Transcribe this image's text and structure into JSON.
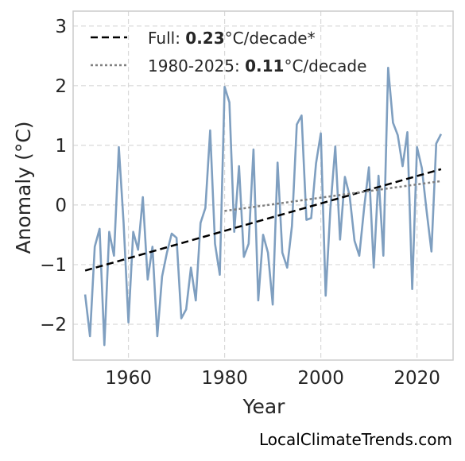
{
  "chart_data": {
    "type": "line",
    "xlabel": "Year",
    "ylabel": "Anomaly (°C)",
    "xlim": [
      1948.5,
      2027.5
    ],
    "ylim": [
      -2.6,
      3.25
    ],
    "x_ticks": [
      1960,
      1980,
      2000,
      2020
    ],
    "y_ticks": [
      -2,
      -1,
      0,
      1,
      2,
      3
    ],
    "x_tick_labels": [
      "1960",
      "1980",
      "2000",
      "2020"
    ],
    "y_tick_labels": [
      "−2",
      "−1",
      "0",
      "1",
      "2",
      "3"
    ],
    "grid": true,
    "legend_position": "top-left",
    "colors": {
      "series": "#7f9fc0",
      "full_trend": "#000000",
      "recent_trend": "#808080",
      "grid": "#d9d9d9",
      "frame": "#cccccc"
    },
    "series": [
      {
        "x": [
          1951,
          1952,
          1953,
          1954,
          1955,
          1956,
          1957,
          1958,
          1959,
          1960,
          1961,
          1962,
          1963,
          1964,
          1965,
          1966,
          1967,
          1968,
          1969,
          1970,
          1971,
          1972,
          1973,
          1974,
          1975,
          1976,
          1977,
          1978,
          1979,
          1980,
          1981,
          1982,
          1983,
          1984,
          1985,
          1986,
          1987,
          1988,
          1989,
          1990,
          1991,
          1992,
          1993,
          1994,
          1995,
          1996,
          1997,
          1998,
          1999,
          2000,
          2001,
          2002,
          2003,
          2004,
          2005,
          2006,
          2007,
          2008,
          2009,
          2010,
          2011,
          2012,
          2013,
          2014,
          2015,
          2016,
          2017,
          2018,
          2019,
          2020,
          2021,
          2022,
          2023,
          2024,
          2025
        ],
        "values": [
          -1.5,
          -2.2,
          -0.7,
          -0.4,
          -2.35,
          -0.45,
          -0.85,
          0.97,
          -0.3,
          -1.97,
          -0.45,
          -0.75,
          0.13,
          -1.25,
          -0.7,
          -2.2,
          -1.2,
          -0.8,
          -0.48,
          -0.55,
          -1.9,
          -1.75,
          -1.05,
          -1.6,
          -0.3,
          -0.05,
          1.25,
          -0.65,
          -1.17,
          1.98,
          1.72,
          -0.45,
          0.65,
          -0.87,
          -0.65,
          0.93,
          -1.6,
          -0.5,
          -0.8,
          -1.67,
          0.71,
          -0.8,
          -1.05,
          -0.35,
          1.35,
          1.5,
          -0.25,
          -0.22,
          0.7,
          1.2,
          -1.52,
          -0.05,
          0.98,
          -0.58,
          0.47,
          0.15,
          -0.6,
          -0.85,
          -0.05,
          0.63,
          -1.05,
          0.49,
          -0.85,
          2.3,
          1.38,
          1.17,
          0.65,
          1.22,
          -1.41,
          0.97,
          0.62,
          -0.1,
          -0.78,
          1.03,
          1.19
        ]
      }
    ],
    "trend_lines": [
      {
        "start": [
          1951,
          -1.1
        ],
        "end": [
          2025,
          0.6
        ]
      },
      {
        "start": [
          1980,
          -0.1
        ],
        "end": [
          2025,
          0.4
        ]
      }
    ],
    "legend": [
      {
        "prefix": "Full: ",
        "value": "0.23",
        "suffix": "°C/decade*"
      },
      {
        "prefix": "1980-2025: ",
        "value": "0.11",
        "suffix": "°C/decade"
      }
    ]
  },
  "watermark": "LocalClimateTrends.com"
}
